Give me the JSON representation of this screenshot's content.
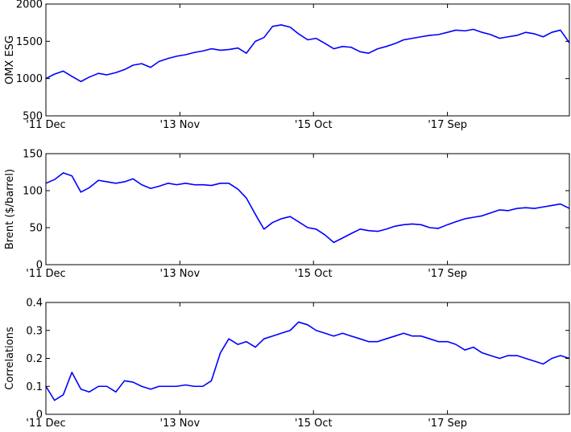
{
  "chart_data": [
    {
      "type": "line",
      "ylabel": "OMX ESG",
      "ylim": [
        500,
        2000
      ],
      "yticks": [
        500,
        1000,
        1500,
        2000
      ],
      "xlim": [
        "2011-12-01",
        "2019-06-01"
      ],
      "xticks": [
        {
          "date": "2011-12-01",
          "label": "'11 Dec"
        },
        {
          "date": "2013-11-01",
          "label": "'13 Nov"
        },
        {
          "date": "2015-10-01",
          "label": "'15 Oct"
        },
        {
          "date": "2017-09-01",
          "label": "'17 Sep"
        }
      ],
      "color": "#0000ff",
      "grid": false,
      "series": [
        {
          "x": [
            "2011-12-01",
            "2012-01-15",
            "2012-03-01",
            "2012-04-15",
            "2012-06-01",
            "2012-07-15",
            "2012-09-01",
            "2012-10-15",
            "2012-12-01",
            "2013-01-15",
            "2013-03-01",
            "2013-04-15",
            "2013-06-01",
            "2013-07-15",
            "2013-09-01",
            "2013-10-15",
            "2013-12-01",
            "2014-01-15",
            "2014-03-01",
            "2014-04-15",
            "2014-06-01",
            "2014-07-15",
            "2014-09-01",
            "2014-10-15",
            "2014-12-01",
            "2015-01-15",
            "2015-03-01",
            "2015-04-15",
            "2015-06-01",
            "2015-07-15",
            "2015-09-01",
            "2015-10-15",
            "2015-12-01",
            "2016-01-15",
            "2016-03-01",
            "2016-04-15",
            "2016-06-01",
            "2016-07-15",
            "2016-09-01",
            "2016-10-15",
            "2016-12-01",
            "2017-01-15",
            "2017-03-01",
            "2017-04-15",
            "2017-06-01",
            "2017-07-15",
            "2017-09-01",
            "2017-10-15",
            "2017-12-01",
            "2018-01-15",
            "2018-03-01",
            "2018-04-15",
            "2018-06-01",
            "2018-07-15",
            "2018-09-01",
            "2018-10-15",
            "2018-12-01",
            "2019-01-15",
            "2019-03-01",
            "2019-04-15",
            "2019-06-01"
          ],
          "values": [
            1000,
            1060,
            1100,
            1030,
            960,
            1020,
            1070,
            1050,
            1080,
            1120,
            1180,
            1200,
            1150,
            1230,
            1270,
            1300,
            1320,
            1350,
            1370,
            1400,
            1380,
            1390,
            1410,
            1340,
            1500,
            1550,
            1700,
            1720,
            1690,
            1600,
            1520,
            1540,
            1470,
            1400,
            1430,
            1420,
            1360,
            1340,
            1400,
            1430,
            1470,
            1520,
            1540,
            1560,
            1580,
            1590,
            1620,
            1650,
            1640,
            1660,
            1620,
            1590,
            1540,
            1560,
            1580,
            1620,
            1600,
            1560,
            1620,
            1650,
            1480
          ]
        }
      ]
    },
    {
      "type": "line",
      "ylabel": "Brent ($/barrel)",
      "ylim": [
        0,
        150
      ],
      "yticks": [
        0,
        50,
        100,
        150
      ],
      "xlim": [
        "2011-12-01",
        "2019-06-01"
      ],
      "xticks": [
        {
          "date": "2011-12-01",
          "label": "'11 Dec"
        },
        {
          "date": "2013-11-01",
          "label": "'13 Nov"
        },
        {
          "date": "2015-10-01",
          "label": "'15 Oct"
        },
        {
          "date": "2017-09-01",
          "label": "'17 Sep"
        }
      ],
      "color": "#0000ff",
      "grid": false,
      "series": [
        {
          "x": [
            "2011-12-01",
            "2012-01-15",
            "2012-03-01",
            "2012-04-15",
            "2012-06-01",
            "2012-07-15",
            "2012-09-01",
            "2012-10-15",
            "2012-12-01",
            "2013-01-15",
            "2013-03-01",
            "2013-04-15",
            "2013-06-01",
            "2013-07-15",
            "2013-09-01",
            "2013-10-15",
            "2013-12-01",
            "2014-01-15",
            "2014-03-01",
            "2014-04-15",
            "2014-06-01",
            "2014-07-15",
            "2014-09-01",
            "2014-10-15",
            "2014-12-01",
            "2015-01-15",
            "2015-03-01",
            "2015-04-15",
            "2015-06-01",
            "2015-07-15",
            "2015-09-01",
            "2015-10-15",
            "2015-12-01",
            "2016-01-15",
            "2016-03-01",
            "2016-04-15",
            "2016-06-01",
            "2016-07-15",
            "2016-09-01",
            "2016-10-15",
            "2016-12-01",
            "2017-01-15",
            "2017-03-01",
            "2017-04-15",
            "2017-06-01",
            "2017-07-15",
            "2017-09-01",
            "2017-10-15",
            "2017-12-01",
            "2018-01-15",
            "2018-03-01",
            "2018-04-15",
            "2018-06-01",
            "2018-07-15",
            "2018-09-01",
            "2018-10-15",
            "2018-12-01",
            "2019-01-15",
            "2019-03-01",
            "2019-04-15",
            "2019-06-01"
          ],
          "values": [
            110,
            115,
            124,
            120,
            98,
            104,
            114,
            112,
            110,
            112,
            116,
            108,
            103,
            106,
            110,
            108,
            110,
            108,
            108,
            107,
            110,
            110,
            102,
            90,
            68,
            48,
            57,
            62,
            65,
            58,
            50,
            48,
            40,
            30,
            36,
            42,
            48,
            46,
            45,
            48,
            52,
            54,
            55,
            54,
            50,
            49,
            54,
            58,
            62,
            64,
            66,
            70,
            74,
            73,
            76,
            77,
            76,
            78,
            80,
            82,
            76
          ]
        }
      ]
    },
    {
      "type": "line",
      "ylabel": "Correlations",
      "ylim": [
        0,
        0.4
      ],
      "yticks": [
        0,
        0.1,
        0.2,
        0.3,
        0.4
      ],
      "xlim": [
        "2011-12-01",
        "2019-06-01"
      ],
      "xticks": [
        {
          "date": "2011-12-01",
          "label": "'11 Dec"
        },
        {
          "date": "2013-11-01",
          "label": "'13 Nov"
        },
        {
          "date": "2015-10-01",
          "label": "'15 Oct"
        },
        {
          "date": "2017-09-01",
          "label": "'17 Sep"
        }
      ],
      "color": "#0000ff",
      "grid": false,
      "series": [
        {
          "x": [
            "2011-12-01",
            "2012-01-15",
            "2012-03-01",
            "2012-04-15",
            "2012-06-01",
            "2012-07-15",
            "2012-09-01",
            "2012-10-15",
            "2012-12-01",
            "2013-01-15",
            "2013-03-01",
            "2013-04-15",
            "2013-06-01",
            "2013-07-15",
            "2013-09-01",
            "2013-10-15",
            "2013-12-01",
            "2014-01-15",
            "2014-03-01",
            "2014-04-15",
            "2014-06-01",
            "2014-07-15",
            "2014-09-01",
            "2014-10-15",
            "2014-12-01",
            "2015-01-15",
            "2015-03-01",
            "2015-04-15",
            "2015-06-01",
            "2015-07-15",
            "2015-09-01",
            "2015-10-15",
            "2015-12-01",
            "2016-01-15",
            "2016-03-01",
            "2016-04-15",
            "2016-06-01",
            "2016-07-15",
            "2016-09-01",
            "2016-10-15",
            "2016-12-01",
            "2017-01-15",
            "2017-03-01",
            "2017-04-15",
            "2017-06-01",
            "2017-07-15",
            "2017-09-01",
            "2017-10-15",
            "2017-12-01",
            "2018-01-15",
            "2018-03-01",
            "2018-04-15",
            "2018-06-01",
            "2018-07-15",
            "2018-09-01",
            "2018-10-15",
            "2018-12-01",
            "2019-01-15",
            "2019-03-01",
            "2019-04-15",
            "2019-06-01"
          ],
          "values": [
            0.1,
            0.05,
            0.07,
            0.15,
            0.09,
            0.08,
            0.1,
            0.1,
            0.08,
            0.12,
            0.115,
            0.1,
            0.09,
            0.1,
            0.1,
            0.1,
            0.105,
            0.1,
            0.1,
            0.12,
            0.22,
            0.27,
            0.25,
            0.26,
            0.24,
            0.27,
            0.28,
            0.29,
            0.3,
            0.33,
            0.32,
            0.3,
            0.29,
            0.28,
            0.29,
            0.28,
            0.27,
            0.26,
            0.26,
            0.27,
            0.28,
            0.29,
            0.28,
            0.28,
            0.27,
            0.26,
            0.26,
            0.25,
            0.23,
            0.24,
            0.22,
            0.21,
            0.2,
            0.21,
            0.21,
            0.2,
            0.19,
            0.18,
            0.2,
            0.21,
            0.2
          ]
        }
      ]
    }
  ]
}
